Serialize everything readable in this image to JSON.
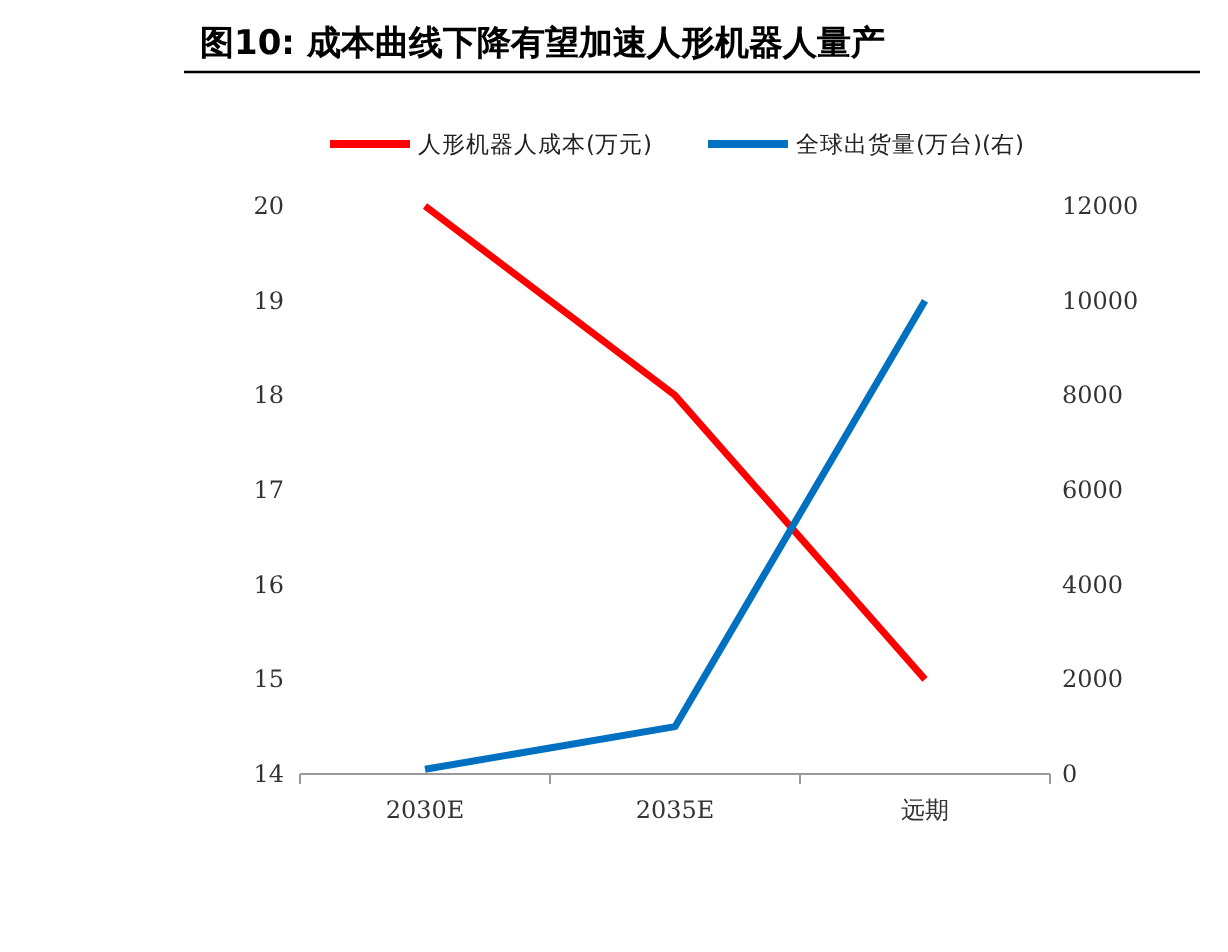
{
  "chart_data": {
    "type": "line",
    "title": "图10:  成本曲线下降有望加速人形机器人量产",
    "categories": [
      "2030E",
      "2035E",
      "远期"
    ],
    "series": [
      {
        "name": "人形机器人成本(万元)",
        "color": "#ff0000",
        "values": [
          20,
          18,
          15
        ]
      },
      {
        "name": "全球出货量(万台)(右)",
        "color": "#0070c0",
        "values": [
          100,
          1000,
          10000
        ],
        "axis": "y2"
      }
    ],
    "ylim": [
      14,
      20
    ],
    "yticks": [
      14,
      15,
      16,
      17,
      18,
      19,
      20
    ],
    "y2lim": [
      0,
      12000
    ],
    "y2ticks": [
      0,
      2000,
      4000,
      6000,
      8000,
      10000,
      12000
    ],
    "legend": "top"
  }
}
